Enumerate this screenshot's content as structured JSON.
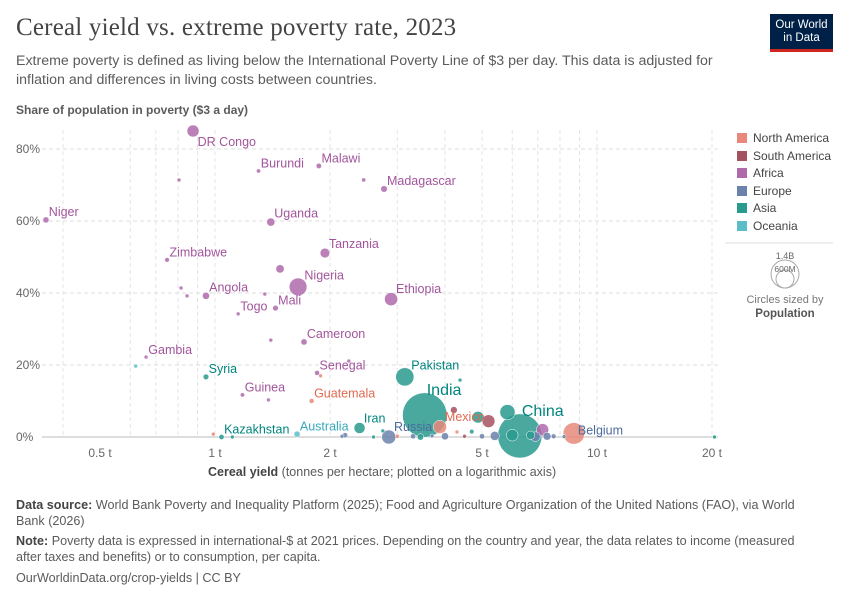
{
  "header": {
    "title": "Cereal yield vs. extreme poverty rate, 2023",
    "subtitle": "Extreme poverty is defined as living below the International Poverty Line of $3 per day. This data is adjusted for inflation and differences in living costs between countries.",
    "logo": "Our World in Data"
  },
  "legend": {
    "items": [
      {
        "label": "North America",
        "color": "#e8887a"
      },
      {
        "label": "South America",
        "color": "#a3525f"
      },
      {
        "label": "Africa",
        "color": "#b06aab"
      },
      {
        "label": "Europe",
        "color": "#6b82ad"
      },
      {
        "label": "Asia",
        "color": "#2a9a8e"
      },
      {
        "label": "Oceania",
        "color": "#5bbdc8"
      }
    ],
    "size_legend": {
      "large": "1.4B",
      "small": "600M",
      "caption": "Circles sized by",
      "variable": "Population"
    }
  },
  "chart_data": {
    "type": "scatter",
    "xlabel_bold": "Cereal yield",
    "xlabel_rest": " (tonnes per hectare; plotted on a logarithmic axis)",
    "ylabel": "Share of population in poverty ($3 a day)",
    "x_scale": "log",
    "xlim": [
      0.35,
      20.7
    ],
    "ylim": [
      0,
      85
    ],
    "x_ticks": [
      {
        "v": 0.5,
        "label": "0.5 t"
      },
      {
        "v": 1,
        "label": "1 t"
      },
      {
        "v": 2,
        "label": "2 t"
      },
      {
        "v": 5,
        "label": "5 t"
      },
      {
        "v": 10,
        "label": "10 t"
      },
      {
        "v": 20,
        "label": "20 t"
      }
    ],
    "y_ticks": [
      {
        "v": 0,
        "label": "0%"
      },
      {
        "v": 20,
        "label": "20%"
      },
      {
        "v": 40,
        "label": "40%"
      },
      {
        "v": 60,
        "label": "60%"
      },
      {
        "v": 80,
        "label": "80%"
      }
    ],
    "grid": true,
    "size_by": "population (millions)",
    "points": [
      {
        "label": "DR Congo",
        "x": 0.876,
        "y": 85,
        "region": "Africa",
        "pop": 105,
        "lpos": "below"
      },
      {
        "label": "Burundi",
        "x": 1.3,
        "y": 73.9,
        "region": "Africa",
        "pop": 13
      },
      {
        "label": "Malawi",
        "x": 1.87,
        "y": 75.3,
        "region": "Africa",
        "pop": 21
      },
      {
        "label": "",
        "x": 0.805,
        "y": 71.4,
        "region": "Africa",
        "pop": 10
      },
      {
        "label": "",
        "x": 2.45,
        "y": 71.4,
        "region": "Africa",
        "pop": 12
      },
      {
        "label": "Madagascar",
        "x": 2.77,
        "y": 68.9,
        "region": "Africa",
        "pop": 31
      },
      {
        "label": "Niger",
        "x": 0.361,
        "y": 60.3,
        "region": "Africa",
        "pop": 27
      },
      {
        "label": "Uganda",
        "x": 1.4,
        "y": 59.7,
        "region": "Africa",
        "pop": 48
      },
      {
        "label": "Zimbabwe",
        "x": 0.749,
        "y": 49.2,
        "region": "Africa",
        "pop": 16
      },
      {
        "label": "Tanzania",
        "x": 1.94,
        "y": 51.1,
        "region": "Africa",
        "pop": 67
      },
      {
        "label": "",
        "x": 1.48,
        "y": 46.7,
        "region": "Africa",
        "pop": 50
      },
      {
        "label": "Nigeria",
        "x": 1.65,
        "y": 41.7,
        "region": "Africa",
        "pop": 227
      },
      {
        "label": "Angola",
        "x": 0.947,
        "y": 39.2,
        "region": "Africa",
        "pop": 37
      },
      {
        "label": "",
        "x": 0.815,
        "y": 41.4,
        "region": "Africa",
        "pop": 10
      },
      {
        "label": "",
        "x": 0.845,
        "y": 39.2,
        "region": "Africa",
        "pop": 10
      },
      {
        "label": "",
        "x": 1.35,
        "y": 39.7,
        "region": "Africa",
        "pop": 6
      },
      {
        "label": "Mali",
        "x": 1.44,
        "y": 35.8,
        "region": "Africa",
        "pop": 23
      },
      {
        "label": "Togo",
        "x": 1.15,
        "y": 34.2,
        "region": "Africa",
        "pop": 9
      },
      {
        "label": "Ethiopia",
        "x": 2.89,
        "y": 38.3,
        "region": "Africa",
        "pop": 126
      },
      {
        "label": "Cameroon",
        "x": 1.71,
        "y": 26.4,
        "region": "Africa",
        "pop": 28
      },
      {
        "label": "",
        "x": 1.4,
        "y": 26.9,
        "region": "Africa",
        "pop": 6
      },
      {
        "label": "",
        "x": 2.24,
        "y": 21.1,
        "region": "Africa",
        "pop": 10
      },
      {
        "label": "Gambia",
        "x": 0.66,
        "y": 22.2,
        "region": "Africa",
        "pop": 3
      },
      {
        "label": "",
        "x": 0.62,
        "y": 19.7,
        "region": "Oceania",
        "pop": 3
      },
      {
        "label": "Syria",
        "x": 0.947,
        "y": 16.7,
        "region": "Asia",
        "pop": 23
      },
      {
        "label": "Senegal",
        "x": 1.85,
        "y": 17.8,
        "region": "Africa",
        "pop": 18
      },
      {
        "label": "",
        "x": 1.89,
        "y": 17.0,
        "region": "North America",
        "pop": 10
      },
      {
        "label": "Guatemala",
        "x": 1.79,
        "y": 10,
        "region": "North America",
        "pop": 18
      },
      {
        "label": "Guinea",
        "x": 1.18,
        "y": 11.7,
        "region": "Africa",
        "pop": 14
      },
      {
        "label": "",
        "x": 1.38,
        "y": 10.3,
        "region": "Africa",
        "pop": 8
      },
      {
        "label": "Pakistan",
        "x": 3.14,
        "y": 16.7,
        "region": "Asia",
        "pop": 240
      },
      {
        "label": "",
        "x": 4.38,
        "y": 15.8,
        "region": "Asia",
        "pop": 8
      },
      {
        "label": "India",
        "x": 3.54,
        "y": 6.1,
        "region": "Asia",
        "pop": 1430,
        "big": true
      },
      {
        "label": "",
        "x": 4.22,
        "y": 7.5,
        "region": "South America",
        "pop": 34
      },
      {
        "label": "Mexico",
        "x": 3.88,
        "y": 2.8,
        "region": "North America",
        "pop": 128
      },
      {
        "label": "",
        "x": 4.88,
        "y": 5.5,
        "region": "Asia",
        "pop": 100
      },
      {
        "label": "",
        "x": 5.83,
        "y": 6.9,
        "region": "Asia",
        "pop": 170
      },
      {
        "label": "",
        "x": 5.2,
        "y": 4.4,
        "region": "South America",
        "pop": 120
      },
      {
        "label": "China",
        "x": 6.28,
        "y": 0.3,
        "region": "Asia",
        "pop": 1410,
        "big": true
      },
      {
        "label": "",
        "x": 6.0,
        "y": 0.5,
        "region": "Asia",
        "pop": 100
      },
      {
        "label": "",
        "x": 7.2,
        "y": 2.0,
        "region": "Africa",
        "pop": 112
      },
      {
        "label": "Belgium",
        "x": 8.7,
        "y": 1.0,
        "region": "North America",
        "pop": 335,
        "lcolor": "Europe"
      },
      {
        "label": "",
        "x": 20.3,
        "y": 0,
        "region": "Asia",
        "pop": 4
      },
      {
        "label": "Kazakhstan",
        "x": 1.04,
        "y": 0,
        "region": "Asia",
        "pop": 20
      },
      {
        "label": "",
        "x": 0.99,
        "y": 0.8,
        "region": "North America",
        "pop": 5
      },
      {
        "label": "",
        "x": 1.11,
        "y": 0,
        "region": "Asia",
        "pop": 5
      },
      {
        "label": "Australia",
        "x": 1.64,
        "y": 0.8,
        "region": "Oceania",
        "pop": 27
      },
      {
        "label": "Iran",
        "x": 2.39,
        "y": 2.5,
        "region": "Asia",
        "pop": 89
      },
      {
        "label": "",
        "x": 2.75,
        "y": 1.7,
        "region": "Asia",
        "pop": 8
      },
      {
        "label": "Russia",
        "x": 2.85,
        "y": 0,
        "region": "Europe",
        "pop": 144
      },
      {
        "label": "",
        "x": 3.0,
        "y": 0.2,
        "region": "North America",
        "pop": 12
      },
      {
        "label": "",
        "x": 2.19,
        "y": 0.5,
        "region": "Europe",
        "pop": 20
      },
      {
        "label": "",
        "x": 2.15,
        "y": 0.2,
        "region": "Europe",
        "pop": 8
      },
      {
        "label": "",
        "x": 2.6,
        "y": 0,
        "region": "Asia",
        "pop": 10
      },
      {
        "label": "",
        "x": 3.3,
        "y": 0.2,
        "region": "Europe",
        "pop": 20
      },
      {
        "label": "",
        "x": 3.45,
        "y": 0,
        "region": "Asia",
        "pop": 30
      },
      {
        "label": "",
        "x": 3.7,
        "y": 0.3,
        "region": "Europe",
        "pop": 10
      },
      {
        "label": "",
        "x": 4.0,
        "y": 0.2,
        "region": "Europe",
        "pop": 38
      },
      {
        "label": "",
        "x": 4.3,
        "y": 1.4,
        "region": "North America",
        "pop": 6
      },
      {
        "label": "",
        "x": 4.5,
        "y": 0.2,
        "region": "South America",
        "pop": 8
      },
      {
        "label": "",
        "x": 4.7,
        "y": 1.5,
        "region": "Asia",
        "pop": 15
      },
      {
        "label": "",
        "x": 5.0,
        "y": 0.2,
        "region": "Europe",
        "pop": 20
      },
      {
        "label": "",
        "x": 5.4,
        "y": 0.3,
        "region": "Europe",
        "pop": 60
      },
      {
        "label": "",
        "x": 6.9,
        "y": 0.1,
        "region": "Europe",
        "pop": 68
      },
      {
        "label": "",
        "x": 7.4,
        "y": 0.2,
        "region": "Europe",
        "pop": 45
      },
      {
        "label": "",
        "x": 7.7,
        "y": 0.2,
        "region": "Europe",
        "pop": 17
      },
      {
        "label": "",
        "x": 8.2,
        "y": 0.1,
        "region": "Europe",
        "pop": 10
      },
      {
        "label": "",
        "x": 6.7,
        "y": 0.5,
        "region": "Asia",
        "pop": 52
      }
    ]
  },
  "footer": {
    "source_label": "Data source:",
    "source": "World Bank Poverty and Inequality Platform (2025); Food and Agriculture Organization of the United Nations (FAO), via World Bank (2026)",
    "note_label": "Note:",
    "note": "Poverty data is expressed in international-$ at 2021 prices. Depending on the country and year, the data relates to income (measured after taxes and benefits) or to consumption, per capita.",
    "url": "OurWorldinData.org/crop-yields | CC BY"
  }
}
